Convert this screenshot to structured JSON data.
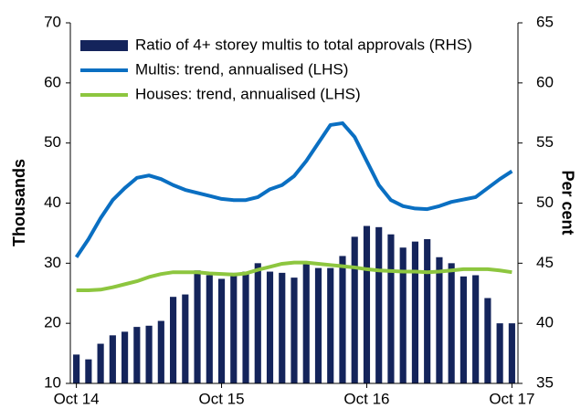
{
  "chart_data": {
    "type": "bar_line",
    "categories": [
      "Oct 14",
      null,
      null,
      null,
      null,
      null,
      null,
      null,
      null,
      null,
      null,
      null,
      "Oct 15",
      null,
      null,
      null,
      null,
      null,
      null,
      null,
      null,
      null,
      null,
      null,
      "Oct 16",
      null,
      null,
      null,
      null,
      null,
      null,
      null,
      null,
      null,
      null,
      null,
      "Oct 17"
    ],
    "series": [
      {
        "name": "Ratio of 4+ storey multis to total approvals (RHS)",
        "type": "bar",
        "axis": "y2",
        "color": "#14245b",
        "values": [
          37.4,
          37.0,
          38.3,
          39.0,
          39.3,
          39.7,
          39.8,
          40.2,
          42.2,
          42.4,
          44.4,
          44.0,
          43.7,
          44.2,
          44.3,
          45.0,
          44.3,
          44.2,
          43.8,
          45.0,
          44.6,
          44.6,
          45.6,
          47.2,
          48.1,
          48.0,
          47.4,
          46.3,
          46.8,
          47.0,
          45.5,
          45.0,
          43.9,
          44.0,
          42.1,
          40.0,
          40.0
        ]
      },
      {
        "name": "Multis: trend, annualised (LHS)",
        "type": "line",
        "color": "#0a6fc2",
        "values": [
          31,
          34,
          37.5,
          40.5,
          42.5,
          44.2,
          44.6,
          44,
          43,
          42.2,
          41.7,
          41.2,
          40.7,
          40.5,
          40.5,
          41,
          42.3,
          43,
          44.5,
          47,
          50,
          53,
          53.3,
          51,
          47,
          43,
          40.5,
          39.5,
          39.1,
          39,
          39.5,
          40.2,
          40.6,
          41,
          42.5,
          44,
          45.3
        ]
      },
      {
        "name": "Houses: trend, annualised (LHS)",
        "type": "line",
        "color": "#8dc63f",
        "values": [
          25.5,
          25.5,
          25.6,
          26,
          26.5,
          27,
          27.7,
          28.2,
          28.5,
          28.5,
          28.5,
          28.3,
          28.2,
          28.1,
          28.3,
          28.9,
          29.4,
          29.9,
          30.1,
          30.1,
          29.9,
          29.7,
          29.5,
          29.3,
          29,
          28.8,
          28.7,
          28.6,
          28.6,
          28.5,
          28.6,
          28.8,
          29,
          29,
          29,
          28.8,
          28.5
        ]
      }
    ],
    "ylabel": "Thousands",
    "y2label": "Per cent",
    "ylim": [
      10,
      70
    ],
    "yticks": [
      10,
      20,
      30,
      40,
      50,
      60,
      70
    ],
    "y2lim": [
      35,
      65
    ],
    "y2ticks": [
      35,
      40,
      45,
      50,
      55,
      60,
      65
    ],
    "legend": "upper left",
    "grid": false
  }
}
